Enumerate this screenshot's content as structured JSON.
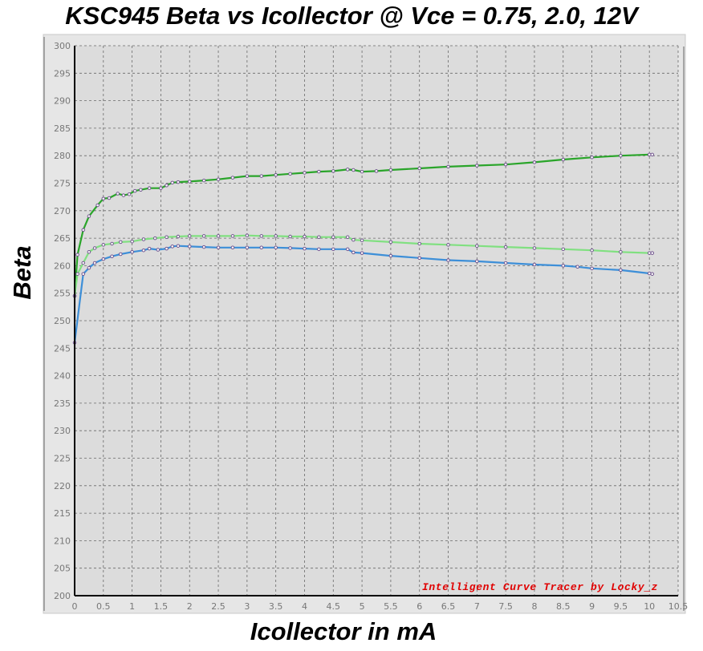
{
  "chart_data": {
    "type": "line",
    "title": "KSC945  Beta vs Icollector  @  Vce = 0.75, 2.0, 12V",
    "xlabel": "Icollector  in  mA",
    "ylabel": "Beta",
    "xlim": [
      0,
      10.5
    ],
    "ylim": [
      200,
      300
    ],
    "x_ticks": [
      "0",
      "0.5",
      "1",
      "1.5",
      "2",
      "2.5",
      "3",
      "3.5",
      "4",
      "4.5",
      "5",
      "5.5",
      "6",
      "6.5",
      "7",
      "7.5",
      "8",
      "8.5",
      "9",
      "9.5",
      "10",
      "10.5"
    ],
    "y_ticks": [
      "200",
      "205",
      "210",
      "215",
      "220",
      "225",
      "230",
      "235",
      "240",
      "245",
      "250",
      "255",
      "260",
      "265",
      "270",
      "275",
      "280",
      "285",
      "290",
      "295",
      "300"
    ],
    "grid": true,
    "annotation": "Intelligent Curve Tracer by Locky_z",
    "series": [
      {
        "color": "#2aa52a",
        "x": [
          0,
          0.05,
          0.15,
          0.25,
          0.4,
          0.5,
          0.6,
          0.75,
          0.85,
          0.95,
          1.05,
          1.15,
          1.3,
          1.5,
          1.6,
          1.7,
          1.8,
          2.0,
          2.25,
          2.5,
          2.75,
          3.0,
          3.25,
          3.5,
          3.75,
          4.0,
          4.25,
          4.5,
          4.75,
          4.85,
          5.0,
          5.25,
          5.5,
          6.0,
          6.5,
          7.0,
          7.5,
          8.0,
          8.5,
          9.0,
          9.5,
          10.0,
          10.05
        ],
        "values": [
          254.5,
          262,
          266.5,
          269,
          271,
          272.2,
          272.3,
          273.1,
          272.8,
          273.0,
          273.6,
          273.8,
          274.1,
          274.1,
          274.6,
          275.1,
          275.2,
          275.3,
          275.5,
          275.7,
          276.0,
          276.3,
          276.3,
          276.5,
          276.7,
          276.9,
          277.1,
          277.2,
          277.5,
          277.4,
          277.1,
          277.2,
          277.4,
          277.7,
          278.0,
          278.2,
          278.4,
          278.8,
          279.3,
          279.7,
          280.0,
          280.2,
          280.2
        ]
      },
      {
        "color": "#80e080",
        "x": [
          0,
          0.05,
          0.15,
          0.25,
          0.35,
          0.5,
          0.65,
          0.8,
          1.0,
          1.2,
          1.4,
          1.6,
          1.8,
          2.0,
          2.25,
          2.5,
          2.75,
          3.0,
          3.25,
          3.5,
          3.75,
          4.0,
          4.25,
          4.5,
          4.75,
          4.85,
          5.0,
          5.5,
          6.0,
          6.5,
          7.0,
          7.5,
          8.0,
          8.5,
          9.0,
          9.5,
          10.0,
          10.05
        ],
        "values": [
          254.5,
          258.5,
          260.5,
          262.5,
          263.2,
          263.8,
          264.0,
          264.3,
          264.4,
          264.8,
          265.0,
          265.2,
          265.3,
          265.4,
          265.4,
          265.4,
          265.4,
          265.5,
          265.4,
          265.4,
          265.3,
          265.3,
          265.2,
          265.2,
          265.2,
          264.7,
          264.6,
          264.3,
          264.0,
          263.8,
          263.6,
          263.4,
          263.2,
          263.0,
          262.8,
          262.5,
          262.3,
          262.3
        ]
      },
      {
        "color": "#3d8fd8",
        "x": [
          0,
          0.15,
          0.25,
          0.35,
          0.5,
          0.65,
          0.8,
          1.0,
          1.2,
          1.3,
          1.45,
          1.6,
          1.7,
          1.8,
          2.0,
          2.25,
          2.5,
          2.75,
          3.0,
          3.25,
          3.5,
          3.75,
          4.0,
          4.25,
          4.5,
          4.75,
          4.85,
          5.0,
          5.5,
          6.0,
          6.5,
          7.0,
          7.5,
          8.0,
          8.5,
          8.75,
          9.0,
          9.5,
          10.0,
          10.05
        ],
        "values": [
          246.0,
          258.5,
          259.6,
          260.5,
          261.2,
          261.7,
          262.1,
          262.5,
          262.8,
          263.1,
          262.9,
          263.1,
          263.5,
          263.6,
          263.5,
          263.4,
          263.3,
          263.3,
          263.3,
          263.3,
          263.3,
          263.2,
          263.1,
          263.0,
          263.0,
          263.0,
          262.4,
          262.3,
          261.8,
          261.4,
          261.0,
          260.8,
          260.5,
          260.2,
          260.0,
          259.8,
          259.5,
          259.2,
          258.6,
          258.5
        ]
      }
    ]
  }
}
